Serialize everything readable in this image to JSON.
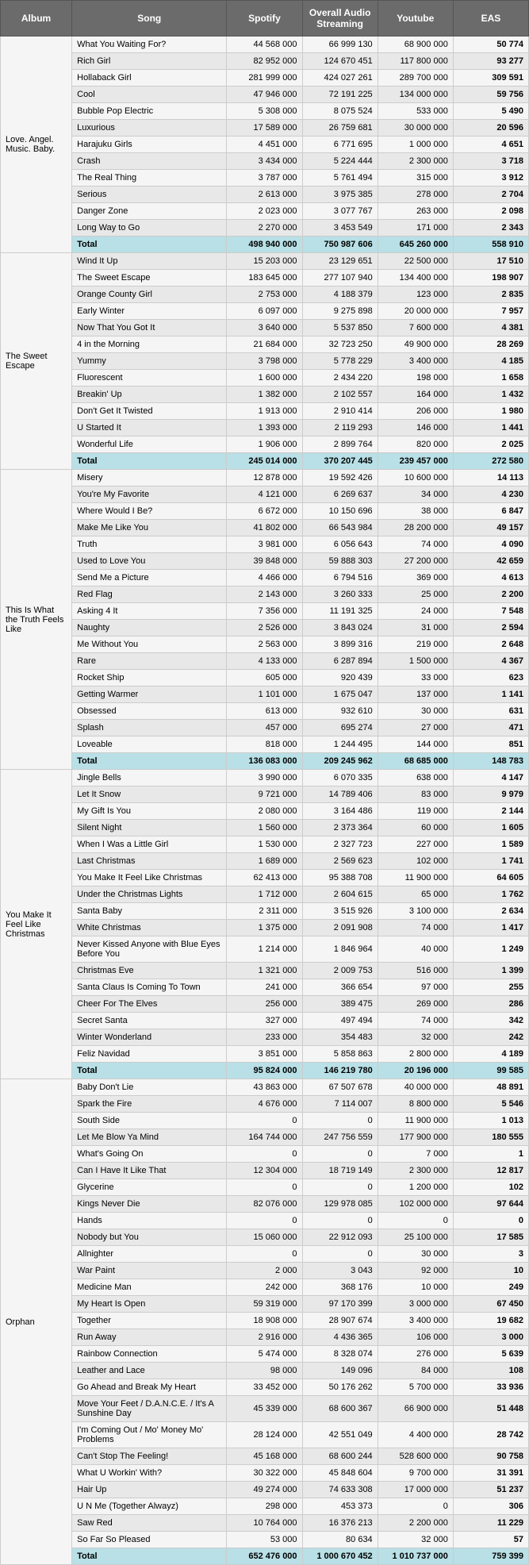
{
  "headers": {
    "album": "Album",
    "song": "Song",
    "spotify": "Spotify",
    "oas": "Overall Audio Streaming",
    "youtube": "Youtube",
    "eas": "EAS"
  },
  "colors": {
    "header_bg": "#6b6b6b",
    "header_fg": "#ffffff",
    "row_even_bg": "#f5f5f5",
    "row_odd_bg": "#e8e8e8",
    "total_bg": "#b8e0e6",
    "border": "#cccccc",
    "album_bg": "#f5f5f5"
  },
  "albums": [
    {
      "name": "Love. Angel. Music. Baby.",
      "songs": [
        {
          "title": "What You Waiting For?",
          "spotify": "44 568 000",
          "oas": "66 999 130",
          "youtube": "68 900 000",
          "eas": "50 774"
        },
        {
          "title": "Rich Girl",
          "spotify": "82 952 000",
          "oas": "124 670 451",
          "youtube": "117 800 000",
          "eas": "93 277"
        },
        {
          "title": "Hollaback Girl",
          "spotify": "281 999 000",
          "oas": "424 027 261",
          "youtube": "289 700 000",
          "eas": "309 591"
        },
        {
          "title": "Cool",
          "spotify": "47 946 000",
          "oas": "72 191 225",
          "youtube": "134 000 000",
          "eas": "59 756"
        },
        {
          "title": "Bubble Pop Electric",
          "spotify": "5 308 000",
          "oas": "8 075 524",
          "youtube": "533 000",
          "eas": "5 490"
        },
        {
          "title": "Luxurious",
          "spotify": "17 589 000",
          "oas": "26 759 681",
          "youtube": "30 000 000",
          "eas": "20 596"
        },
        {
          "title": "Harajuku Girls",
          "spotify": "4 451 000",
          "oas": "6 771 695",
          "youtube": "1 000 000",
          "eas": "4 651"
        },
        {
          "title": "Crash",
          "spotify": "3 434 000",
          "oas": "5 224 444",
          "youtube": "2 300 000",
          "eas": "3 718"
        },
        {
          "title": "The Real Thing",
          "spotify": "3 787 000",
          "oas": "5 761 494",
          "youtube": "315 000",
          "eas": "3 912"
        },
        {
          "title": "Serious",
          "spotify": "2 613 000",
          "oas": "3 975 385",
          "youtube": "278 000",
          "eas": "2 704"
        },
        {
          "title": "Danger Zone",
          "spotify": "2 023 000",
          "oas": "3 077 767",
          "youtube": "263 000",
          "eas": "2 098"
        },
        {
          "title": "Long Way to Go",
          "spotify": "2 270 000",
          "oas": "3 453 549",
          "youtube": "171 000",
          "eas": "2 343"
        }
      ],
      "total": {
        "title": "Total",
        "spotify": "498 940 000",
        "oas": "750 987 606",
        "youtube": "645 260 000",
        "eas": "558 910"
      }
    },
    {
      "name": "The Sweet Escape",
      "songs": [
        {
          "title": "Wind It Up",
          "spotify": "15 203 000",
          "oas": "23 129 651",
          "youtube": "22 500 000",
          "eas": "17 510"
        },
        {
          "title": "The Sweet Escape",
          "spotify": "183 645 000",
          "oas": "277 107 940",
          "youtube": "134 400 000",
          "eas": "198 907"
        },
        {
          "title": "Orange County Girl",
          "spotify": "2 753 000",
          "oas": "4 188 379",
          "youtube": "123 000",
          "eas": "2 835"
        },
        {
          "title": "Early Winter",
          "spotify": "6 097 000",
          "oas": "9 275 898",
          "youtube": "20 000 000",
          "eas": "7 957"
        },
        {
          "title": "Now That You Got It",
          "spotify": "3 640 000",
          "oas": "5 537 850",
          "youtube": "7 600 000",
          "eas": "4 381"
        },
        {
          "title": "4 in the Morning",
          "spotify": "21 684 000",
          "oas": "32 723 250",
          "youtube": "49 900 000",
          "eas": "28 269"
        },
        {
          "title": "Yummy",
          "spotify": "3 798 000",
          "oas": "5 778 229",
          "youtube": "3 400 000",
          "eas": "4 185"
        },
        {
          "title": "Fluorescent",
          "spotify": "1 600 000",
          "oas": "2 434 220",
          "youtube": "198 000",
          "eas": "1 658"
        },
        {
          "title": "Breakin' Up",
          "spotify": "1 382 000",
          "oas": "2 102 557",
          "youtube": "164 000",
          "eas": "1 432"
        },
        {
          "title": "Don't Get It Twisted",
          "spotify": "1 913 000",
          "oas": "2 910 414",
          "youtube": "206 000",
          "eas": "1 980"
        },
        {
          "title": "U Started It",
          "spotify": "1 393 000",
          "oas": "2 119 293",
          "youtube": "146 000",
          "eas": "1 441"
        },
        {
          "title": "Wonderful Life",
          "spotify": "1 906 000",
          "oas": "2 899 764",
          "youtube": "820 000",
          "eas": "2 025"
        }
      ],
      "total": {
        "title": "Total",
        "spotify": "245 014 000",
        "oas": "370 207 445",
        "youtube": "239 457 000",
        "eas": "272 580"
      }
    },
    {
      "name": "This Is What the Truth Feels Like",
      "songs": [
        {
          "title": "Misery",
          "spotify": "12 878 000",
          "oas": "19 592 426",
          "youtube": "10 600 000",
          "eas": "14 113"
        },
        {
          "title": "You're My Favorite",
          "spotify": "4 121 000",
          "oas": "6 269 637",
          "youtube": "34 000",
          "eas": "4 230"
        },
        {
          "title": "Where Would I Be?",
          "spotify": "6 672 000",
          "oas": "10 150 696",
          "youtube": "38 000",
          "eas": "6 847"
        },
        {
          "title": "Make Me Like You",
          "spotify": "41 802 000",
          "oas": "66 543 984",
          "youtube": "28 200 000",
          "eas": "49 157"
        },
        {
          "title": "Truth",
          "spotify": "3 981 000",
          "oas": "6 056 643",
          "youtube": "74 000",
          "eas": "4 090"
        },
        {
          "title": "Used to Love You",
          "spotify": "39 848 000",
          "oas": "59 888 303",
          "youtube": "27 200 000",
          "eas": "42 659"
        },
        {
          "title": "Send Me a Picture",
          "spotify": "4 466 000",
          "oas": "6 794 516",
          "youtube": "369 000",
          "eas": "4 613"
        },
        {
          "title": "Red Flag",
          "spotify": "2 143 000",
          "oas": "3 260 333",
          "youtube": "25 000",
          "eas": "2 200"
        },
        {
          "title": "Asking 4 It",
          "spotify": "7 356 000",
          "oas": "11 191 325",
          "youtube": "24 000",
          "eas": "7 548"
        },
        {
          "title": "Naughty",
          "spotify": "2 526 000",
          "oas": "3 843 024",
          "youtube": "31 000",
          "eas": "2 594"
        },
        {
          "title": "Me Without You",
          "spotify": "2 563 000",
          "oas": "3 899 316",
          "youtube": "219 000",
          "eas": "2 648"
        },
        {
          "title": "Rare",
          "spotify": "4 133 000",
          "oas": "6 287 894",
          "youtube": "1 500 000",
          "eas": "4 367"
        },
        {
          "title": "Rocket Ship",
          "spotify": "605 000",
          "oas": "920 439",
          "youtube": "33 000",
          "eas": "623"
        },
        {
          "title": "Getting Warmer",
          "spotify": "1 101 000",
          "oas": "1 675 047",
          "youtube": "137 000",
          "eas": "1 141"
        },
        {
          "title": "Obsessed",
          "spotify": "613 000",
          "oas": "932 610",
          "youtube": "30 000",
          "eas": "631"
        },
        {
          "title": "Splash",
          "spotify": "457 000",
          "oas": "695 274",
          "youtube": "27 000",
          "eas": "471"
        },
        {
          "title": "Loveable",
          "spotify": "818 000",
          "oas": "1 244 495",
          "youtube": "144 000",
          "eas": "851"
        }
      ],
      "total": {
        "title": "Total",
        "spotify": "136 083 000",
        "oas": "209 245 962",
        "youtube": "68 685 000",
        "eas": "148 783"
      }
    },
    {
      "name": "You Make It Feel Like Christmas",
      "songs": [
        {
          "title": "Jingle Bells",
          "spotify": "3 990 000",
          "oas": "6 070 335",
          "youtube": "638 000",
          "eas": "4 147"
        },
        {
          "title": "Let It Snow",
          "spotify": "9 721 000",
          "oas": "14 789 406",
          "youtube": "83 000",
          "eas": "9 979"
        },
        {
          "title": "My Gift Is You",
          "spotify": "2 080 000",
          "oas": "3 164 486",
          "youtube": "119 000",
          "eas": "2 144"
        },
        {
          "title": "Silent Night",
          "spotify": "1 560 000",
          "oas": "2 373 364",
          "youtube": "60 000",
          "eas": "1 605"
        },
        {
          "title": "When I Was a Little Girl",
          "spotify": "1 530 000",
          "oas": "2 327 723",
          "youtube": "227 000",
          "eas": "1 589"
        },
        {
          "title": "Last Christmas",
          "spotify": "1 689 000",
          "oas": "2 569 623",
          "youtube": "102 000",
          "eas": "1 741"
        },
        {
          "title": "You Make It Feel Like Christmas",
          "spotify": "62 413 000",
          "oas": "95 388 708",
          "youtube": "11 900 000",
          "eas": "64 605"
        },
        {
          "title": "Under the Christmas Lights",
          "spotify": "1 712 000",
          "oas": "2 604 615",
          "youtube": "65 000",
          "eas": "1 762"
        },
        {
          "title": "Santa Baby",
          "spotify": "2 311 000",
          "oas": "3 515 926",
          "youtube": "3 100 000",
          "eas": "2 634"
        },
        {
          "title": "White Christmas",
          "spotify": "1 375 000",
          "oas": "2 091 908",
          "youtube": "74 000",
          "eas": "1 417"
        },
        {
          "title": "Never Kissed Anyone with Blue Eyes Before You",
          "spotify": "1 214 000",
          "oas": "1 846 964",
          "youtube": "40 000",
          "eas": "1 249"
        },
        {
          "title": "Christmas Eve",
          "spotify": "1 321 000",
          "oas": "2 009 753",
          "youtube": "516 000",
          "eas": "1 399"
        },
        {
          "title": "Santa Claus Is Coming To Town",
          "spotify": "241 000",
          "oas": "366 654",
          "youtube": "97 000",
          "eas": "255"
        },
        {
          "title": "Cheer For The Elves",
          "spotify": "256 000",
          "oas": "389 475",
          "youtube": "269 000",
          "eas": "286"
        },
        {
          "title": "Secret Santa",
          "spotify": "327 000",
          "oas": "497 494",
          "youtube": "74 000",
          "eas": "342"
        },
        {
          "title": "Winter Wonderland",
          "spotify": "233 000",
          "oas": "354 483",
          "youtube": "32 000",
          "eas": "242"
        },
        {
          "title": "Feliz Navidad",
          "spotify": "3 851 000",
          "oas": "5 858 863",
          "youtube": "2 800 000",
          "eas": "4 189"
        }
      ],
      "total": {
        "title": "Total",
        "spotify": "95 824 000",
        "oas": "146 219 780",
        "youtube": "20 196 000",
        "eas": "99 585"
      }
    },
    {
      "name": "Orphan",
      "songs": [
        {
          "title": "Baby Don't Lie",
          "spotify": "43 863 000",
          "oas": "67 507 678",
          "youtube": "40 000 000",
          "eas": "48 891"
        },
        {
          "title": "Spark the Fire",
          "spotify": "4 676 000",
          "oas": "7 114 007",
          "youtube": "8 800 000",
          "eas": "5 546"
        },
        {
          "title": "South Side",
          "spotify": "0",
          "oas": "0",
          "youtube": "11 900 000",
          "eas": "1 013"
        },
        {
          "title": "Let Me Blow Ya Mind",
          "spotify": "164 744 000",
          "oas": "247 756 559",
          "youtube": "177 900 000",
          "eas": "180 555"
        },
        {
          "title": "What's Going On",
          "spotify": "0",
          "oas": "0",
          "youtube": "7 000",
          "eas": "1"
        },
        {
          "title": "Can I Have It Like That",
          "spotify": "12 304 000",
          "oas": "18 719 149",
          "youtube": "2 300 000",
          "eas": "12 817"
        },
        {
          "title": "Glycerine",
          "spotify": "0",
          "oas": "0",
          "youtube": "1 200 000",
          "eas": "102"
        },
        {
          "title": "Kings Never Die",
          "spotify": "82 076 000",
          "oas": "129 978 085",
          "youtube": "102 000 000",
          "eas": "97 644"
        },
        {
          "title": "Hands",
          "spotify": "0",
          "oas": "0",
          "youtube": "0",
          "eas": "0"
        },
        {
          "title": "Nobody but You",
          "spotify": "15 060 000",
          "oas": "22 912 093",
          "youtube": "25 100 000",
          "eas": "17 585"
        },
        {
          "title": "Allnighter",
          "spotify": "0",
          "oas": "0",
          "youtube": "30 000",
          "eas": "3"
        },
        {
          "title": "War Paint",
          "spotify": "2 000",
          "oas": "3 043",
          "youtube": "92 000",
          "eas": "10"
        },
        {
          "title": "Medicine Man",
          "spotify": "242 000",
          "oas": "368 176",
          "youtube": "10 000",
          "eas": "249"
        },
        {
          "title": "My Heart Is Open",
          "spotify": "59 319 000",
          "oas": "97 170 399",
          "youtube": "3 000 000",
          "eas": "67 450"
        },
        {
          "title": "Together",
          "spotify": "18 908 000",
          "oas": "28 907 674",
          "youtube": "3 400 000",
          "eas": "19 682"
        },
        {
          "title": "Run Away",
          "spotify": "2 916 000",
          "oas": "4 436 365",
          "youtube": "106 000",
          "eas": "3 000"
        },
        {
          "title": "Rainbow Connection",
          "spotify": "5 474 000",
          "oas": "8 328 074",
          "youtube": "276 000",
          "eas": "5 639"
        },
        {
          "title": "Leather and Lace",
          "spotify": "98 000",
          "oas": "149 096",
          "youtube": "84 000",
          "eas": "108"
        },
        {
          "title": "Go Ahead and Break My Heart",
          "spotify": "33 452 000",
          "oas": "50 176 262",
          "youtube": "5 700 000",
          "eas": "33 936"
        },
        {
          "title": "Move Your Feet / D.A.N.C.E. / It's A Sunshine Day",
          "spotify": "45 339 000",
          "oas": "68 600 367",
          "youtube": "66 900 000",
          "eas": "51 448"
        },
        {
          "title": "I'm Coming Out / Mo' Money Mo' Problems",
          "spotify": "28 124 000",
          "oas": "42 551 049",
          "youtube": "4 400 000",
          "eas": "28 742"
        },
        {
          "title": "Can't Stop The Feeling!",
          "spotify": "45 168 000",
          "oas": "68 600 244",
          "youtube": "528 600 000",
          "eas": "90 758"
        },
        {
          "title": "What U Workin' With?",
          "spotify": "30 322 000",
          "oas": "45 848 604",
          "youtube": "9 700 000",
          "eas": "31 391"
        },
        {
          "title": "Hair Up",
          "spotify": "49 274 000",
          "oas": "74 633 308",
          "youtube": "17 000 000",
          "eas": "51 237"
        },
        {
          "title": "U N Me (Together Alwayz)",
          "spotify": "298 000",
          "oas": "453 373",
          "youtube": "0",
          "eas": "306"
        },
        {
          "title": "Saw Red",
          "spotify": "10 764 000",
          "oas": "16 376 213",
          "youtube": "2 200 000",
          "eas": "11 229"
        },
        {
          "title": "So Far So Pleased",
          "spotify": "53 000",
          "oas": "80 634",
          "youtube": "32 000",
          "eas": "57"
        }
      ],
      "total": {
        "title": "Total",
        "spotify": "652 476 000",
        "oas": "1 000 670 452",
        "youtube": "1 010 737 000",
        "eas": "759 399"
      }
    }
  ]
}
